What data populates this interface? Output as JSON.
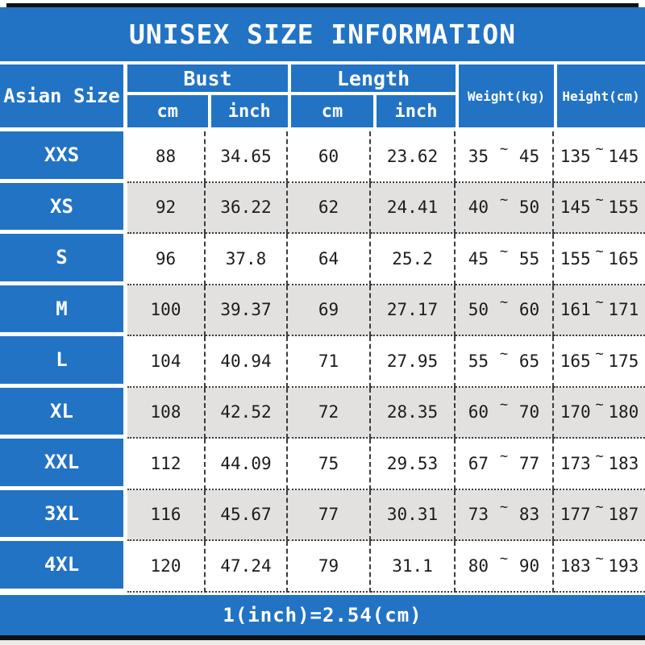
{
  "title": "UNISEX SIZE INFORMATION",
  "header": {
    "size_col": "Asian Size",
    "bust": "Bust",
    "length": "Length",
    "cm": "cm",
    "inch": "inch",
    "weight": "Weight(kg)",
    "height": "Height(cm)"
  },
  "footer": "1(inch)=2.54(cm)",
  "colors": {
    "accent_blue": "#2273c4",
    "row_alt_gray": "#e2e1df",
    "border_black": "#101010",
    "text_dark": "#1c1c1c",
    "text_white": "#ffffff"
  },
  "chart_data": {
    "type": "table",
    "title": "UNISEX SIZE INFORMATION",
    "columns": [
      "Asian Size",
      "Bust cm",
      "Bust inch",
      "Length cm",
      "Length inch",
      "Weight(kg)",
      "Height(cm)"
    ],
    "range_separator": "~",
    "rows": [
      {
        "size": "XXS",
        "bust_cm": "88",
        "bust_inch": "34.65",
        "length_cm": "60",
        "length_inch": "23.62",
        "weight_min": "35",
        "weight_max": "45",
        "height_min": "135",
        "height_max": "145"
      },
      {
        "size": "XS",
        "bust_cm": "92",
        "bust_inch": "36.22",
        "length_cm": "62",
        "length_inch": "24.41",
        "weight_min": "40",
        "weight_max": "50",
        "height_min": "145",
        "height_max": "155"
      },
      {
        "size": "S",
        "bust_cm": "96",
        "bust_inch": "37.8",
        "length_cm": "64",
        "length_inch": "25.2",
        "weight_min": "45",
        "weight_max": "55",
        "height_min": "155",
        "height_max": "165"
      },
      {
        "size": "M",
        "bust_cm": "100",
        "bust_inch": "39.37",
        "length_cm": "69",
        "length_inch": "27.17",
        "weight_min": "50",
        "weight_max": "60",
        "height_min": "161",
        "height_max": "171"
      },
      {
        "size": "L",
        "bust_cm": "104",
        "bust_inch": "40.94",
        "length_cm": "71",
        "length_inch": "27.95",
        "weight_min": "55",
        "weight_max": "65",
        "height_min": "165",
        "height_max": "175"
      },
      {
        "size": "XL",
        "bust_cm": "108",
        "bust_inch": "42.52",
        "length_cm": "72",
        "length_inch": "28.35",
        "weight_min": "60",
        "weight_max": "70",
        "height_min": "170",
        "height_max": "180"
      },
      {
        "size": "XXL",
        "bust_cm": "112",
        "bust_inch": "44.09",
        "length_cm": "75",
        "length_inch": "29.53",
        "weight_min": "67",
        "weight_max": "77",
        "height_min": "173",
        "height_max": "183"
      },
      {
        "size": "3XL",
        "bust_cm": "116",
        "bust_inch": "45.67",
        "length_cm": "77",
        "length_inch": "30.31",
        "weight_min": "73",
        "weight_max": "83",
        "height_min": "177",
        "height_max": "187"
      },
      {
        "size": "4XL",
        "bust_cm": "120",
        "bust_inch": "47.24",
        "length_cm": "79",
        "length_inch": "31.1",
        "weight_min": "80",
        "weight_max": "90",
        "height_min": "183",
        "height_max": "193"
      }
    ],
    "note": "1(inch)=2.54(cm)"
  }
}
